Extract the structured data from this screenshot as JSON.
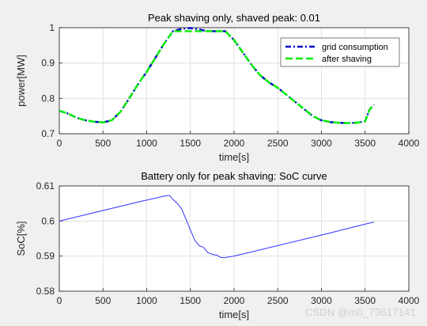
{
  "chart_data": [
    {
      "type": "line",
      "title": "Peak shaving only, shaved peak: 0.01",
      "xlabel": "time[s]",
      "ylabel": "power[MW]",
      "xlim": [
        0,
        4000
      ],
      "ylim": [
        0.7,
        1.0
      ],
      "xticks": [
        "0",
        "500",
        "1000",
        "1500",
        "2000",
        "2500",
        "3000",
        "3500",
        "4000"
      ],
      "yticks": [
        "0.7",
        "0.8",
        "0.9",
        "1"
      ],
      "grid": true,
      "legend_position": "top-right",
      "series": [
        {
          "name": "grid consumption",
          "color": "#0000cc",
          "style": "dash-dot",
          "x": [
            0,
            100,
            200,
            300,
            400,
            500,
            600,
            700,
            800,
            900,
            1000,
            1100,
            1200,
            1300,
            1400,
            1500,
            1600,
            1700,
            1800,
            1900,
            2000,
            2100,
            2200,
            2300,
            2400,
            2500,
            2600,
            2700,
            2800,
            2900,
            3000,
            3100,
            3200,
            3300,
            3400,
            3500,
            3550,
            3600
          ],
          "values": [
            0.765,
            0.757,
            0.745,
            0.738,
            0.734,
            0.732,
            0.738,
            0.762,
            0.8,
            0.84,
            0.875,
            0.915,
            0.955,
            0.99,
            0.997,
            0.999,
            0.995,
            0.99,
            0.99,
            0.99,
            0.965,
            0.93,
            0.895,
            0.865,
            0.845,
            0.83,
            0.81,
            0.79,
            0.77,
            0.75,
            0.738,
            0.733,
            0.731,
            0.73,
            0.731,
            0.735,
            0.768,
            0.782
          ]
        },
        {
          "name": "after shaving",
          "color": "#00ee00",
          "style": "dashed",
          "x": [
            0,
            100,
            200,
            300,
            400,
            500,
            600,
            700,
            800,
            900,
            1000,
            1100,
            1200,
            1300,
            1400,
            1500,
            1600,
            1700,
            1800,
            1900,
            2000,
            2100,
            2200,
            2300,
            2400,
            2500,
            2600,
            2700,
            2800,
            2900,
            3000,
            3100,
            3200,
            3300,
            3400,
            3500,
            3550,
            3600
          ],
          "values": [
            0.765,
            0.757,
            0.745,
            0.738,
            0.734,
            0.732,
            0.738,
            0.762,
            0.8,
            0.84,
            0.875,
            0.915,
            0.955,
            0.99,
            0.99,
            0.99,
            0.99,
            0.99,
            0.99,
            0.99,
            0.965,
            0.93,
            0.895,
            0.865,
            0.845,
            0.83,
            0.81,
            0.79,
            0.77,
            0.75,
            0.738,
            0.733,
            0.731,
            0.73,
            0.731,
            0.735,
            0.768,
            0.782
          ]
        }
      ]
    },
    {
      "type": "line",
      "title": "Battery only for peak shaving: SoC curve",
      "xlabel": "time[s]",
      "ylabel": "SoC[%]",
      "xlim": [
        0,
        4000
      ],
      "ylim": [
        0.58,
        0.61
      ],
      "xticks": [
        "0",
        "500",
        "1000",
        "1500",
        "2000",
        "2500",
        "3000",
        "3500",
        "4000"
      ],
      "yticks": [
        "0.58",
        "0.59",
        "0.6",
        "0.61"
      ],
      "grid": true,
      "series": [
        {
          "color": "#3333ff",
          "style": "solid",
          "x": [
            0,
            300,
            600,
            900,
            1200,
            1260,
            1300,
            1350,
            1400,
            1450,
            1500,
            1550,
            1600,
            1650,
            1700,
            1750,
            1800,
            1850,
            1900,
            1950,
            2000,
            2200,
            2500,
            2800,
            3100,
            3400,
            3600
          ],
          "values": [
            0.6,
            0.6018,
            0.6036,
            0.6054,
            0.6071,
            0.6073,
            0.6062,
            0.605,
            0.6035,
            0.6005,
            0.5975,
            0.5945,
            0.593,
            0.5925,
            0.591,
            0.5905,
            0.5903,
            0.5896,
            0.5896,
            0.5898,
            0.59,
            0.5912,
            0.593,
            0.5948,
            0.5966,
            0.5985,
            0.5997
          ]
        }
      ]
    }
  ],
  "watermark": "CSDN @m0_73617141"
}
